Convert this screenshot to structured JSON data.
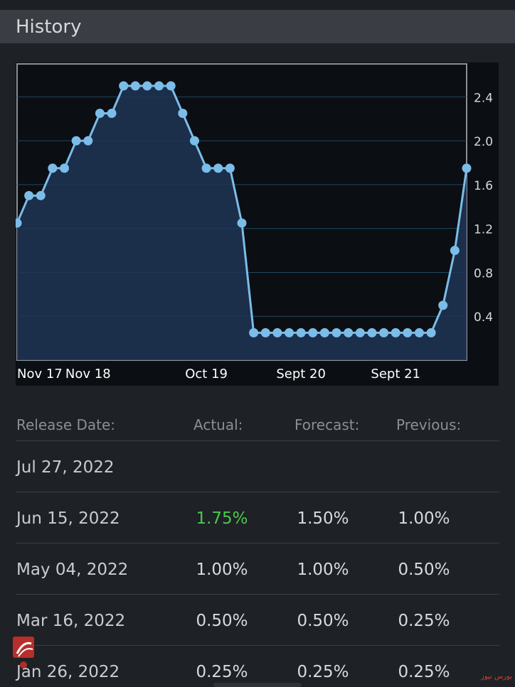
{
  "header": {
    "title": "History"
  },
  "chart_data": {
    "type": "area",
    "title": "",
    "xlabel": "",
    "ylabel": "",
    "y_ticks": [
      "0.4",
      "0.8",
      "1.2",
      "1.6",
      "2.0",
      "2.4"
    ],
    "y_tick_values": [
      0.4,
      0.8,
      1.2,
      1.6,
      2.0,
      2.4
    ],
    "ylim": [
      0,
      2.7
    ],
    "x_tick_labels": [
      "Nov 17",
      "Nov 18",
      "Oct 19",
      "Sept 20",
      "Sept 21"
    ],
    "x_tick_indices": [
      0,
      6,
      16,
      24,
      32
    ],
    "grid": true,
    "colors": {
      "line": "#7bbde8",
      "fill": "#1f3455",
      "grid": "#1f4a60",
      "bg": "#0b0e13"
    },
    "values": [
      1.25,
      1.5,
      1.5,
      1.75,
      1.75,
      2.0,
      2.0,
      2.25,
      2.25,
      2.5,
      2.5,
      2.5,
      2.5,
      2.5,
      2.25,
      2.0,
      1.75,
      1.75,
      1.75,
      1.25,
      0.25,
      0.25,
      0.25,
      0.25,
      0.25,
      0.25,
      0.25,
      0.25,
      0.25,
      0.25,
      0.25,
      0.25,
      0.25,
      0.25,
      0.25,
      0.25,
      0.5,
      1.0,
      1.75
    ]
  },
  "table": {
    "headers": {
      "date": "Release Date:",
      "actual": "Actual:",
      "forecast": "Forecast:",
      "previous": "Previous:"
    },
    "rows": [
      {
        "date": "Jul 27, 2022",
        "actual": "",
        "forecast": "",
        "previous": ""
      },
      {
        "date": "Jun 15, 2022",
        "actual": "1.75%",
        "forecast": "1.50%",
        "previous": "1.00%",
        "actual_color": "#4cc84c"
      },
      {
        "date": "May 04, 2022",
        "actual": "1.00%",
        "forecast": "1.00%",
        "previous": "0.50%"
      },
      {
        "date": "Mar 16, 2022",
        "actual": "0.50%",
        "forecast": "0.50%",
        "previous": "0.25%"
      },
      {
        "date": "Jan 26, 2022",
        "actual": "0.25%",
        "forecast": "0.25%",
        "previous": "0.25%"
      }
    ]
  },
  "watermark": {
    "brand_text": "بورس نیوز"
  }
}
